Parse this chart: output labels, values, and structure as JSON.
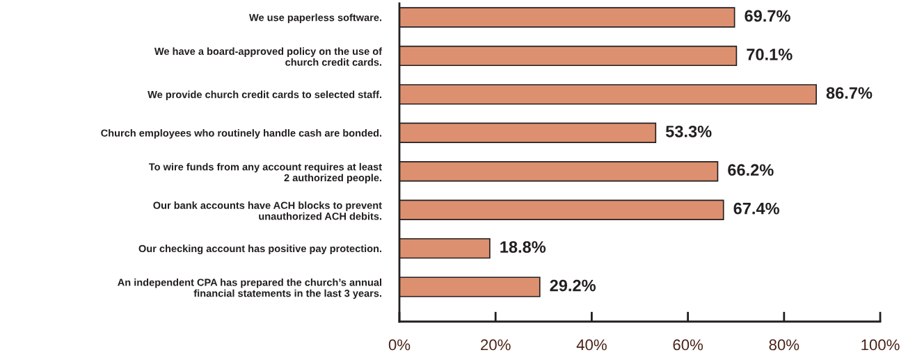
{
  "chart_data": {
    "type": "bar",
    "orientation": "horizontal",
    "categories": [
      "We use paperless software.",
      "We have a board-approved policy on the use of\nchurch credit cards.",
      "We provide church credit cards to selected staff.",
      "Church employees who routinely handle cash are bonded.",
      "To wire funds from any account requires at least\n2 authorized people.",
      "Our bank accounts have ACH blocks to prevent\nunauthorized ACH debits.",
      "Our checking account has positive pay protection.",
      "An independent CPA has prepared the church’s annual\nfinancial statements in the last 3 years."
    ],
    "values": [
      69.7,
      70.1,
      86.7,
      53.3,
      66.2,
      67.4,
      18.8,
      29.2
    ],
    "value_labels": [
      "69.7%",
      "70.1%",
      "86.7%",
      "53.3%",
      "66.2%",
      "67.4%",
      "18.8%",
      "29.2%"
    ],
    "color": "#dd9070",
    "xlim": [
      0,
      100
    ],
    "xticks": [
      {
        "value": 0,
        "label": "0%"
      },
      {
        "value": 20,
        "label": "20%"
      },
      {
        "value": 40,
        "label": "40%"
      },
      {
        "value": 60,
        "label": "60%"
      },
      {
        "value": 80,
        "label": "80%"
      },
      {
        "value": 100,
        "label": "100%"
      }
    ]
  }
}
